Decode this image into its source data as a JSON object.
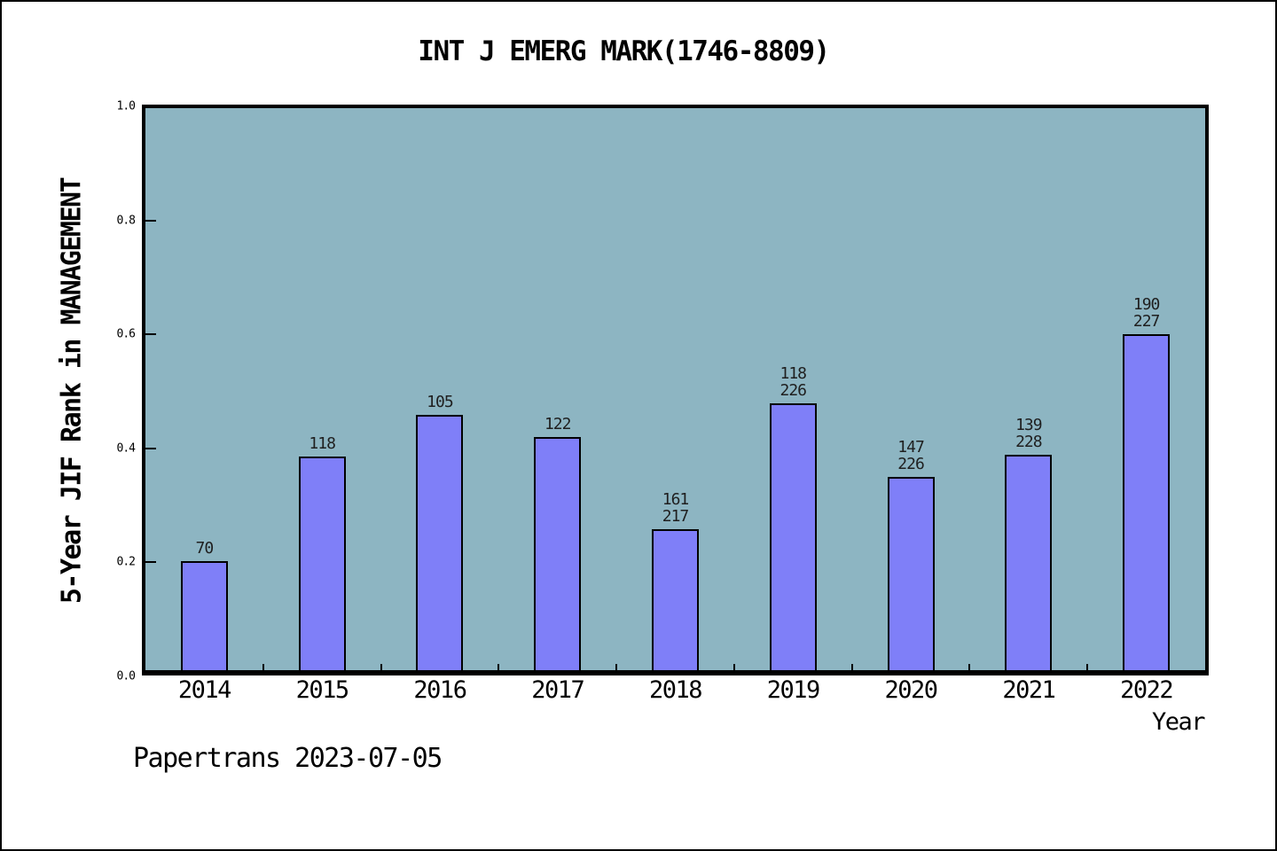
{
  "title": "INT J EMERG MARK(1746-8809)",
  "footer": "Papertrans 2023-07-05",
  "chart_data": {
    "type": "bar",
    "title": "INT J EMERG MARK(1746-8809)",
    "xlabel": "Year",
    "ylabel": "5-Year JIF Rank in MANAGEMENT",
    "categories": [
      "2014",
      "2015",
      "2016",
      "2017",
      "2018",
      "2019",
      "2020",
      "2021",
      "2022"
    ],
    "values": [
      0.202,
      0.385,
      0.458,
      0.419,
      0.258,
      0.478,
      0.35,
      0.388,
      0.6
    ],
    "bar_labels": [
      [
        "70"
      ],
      [
        "118"
      ],
      [
        "105"
      ],
      [
        "122"
      ],
      [
        "161",
        "217"
      ],
      [
        "118",
        "226"
      ],
      [
        "147",
        "226"
      ],
      [
        "139",
        "228"
      ],
      [
        "190",
        "227"
      ]
    ],
    "ylim": [
      0.0,
      1.0
    ],
    "ytick_labels": [
      "0.0",
      "0.2",
      "0.4",
      "0.6",
      "0.8",
      "1.0"
    ],
    "ytick_values": [
      0.0,
      0.2,
      0.4,
      0.6,
      0.8,
      1.0
    ],
    "grid": "off",
    "legend": "none",
    "colors": {
      "bar_fill": "#7f7ff8",
      "bar_border": "#000000",
      "plot_bg": "#8db5c2",
      "text": "#000000",
      "bar_label_text": "#1f1f1f"
    }
  }
}
